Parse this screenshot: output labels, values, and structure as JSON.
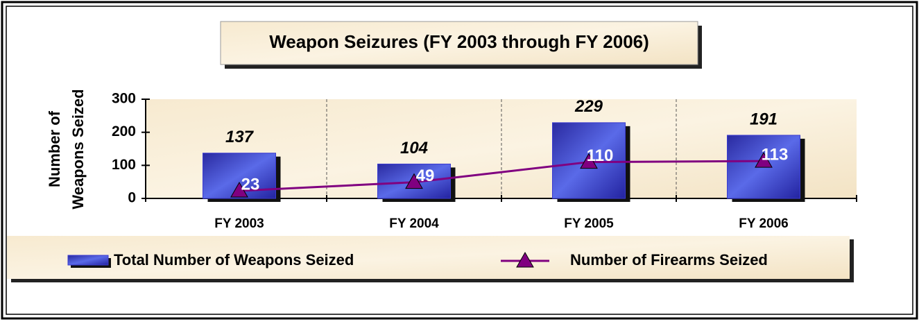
{
  "chart_data": {
    "type": "bar",
    "title": "Weapon Seizures (FY 2003 through FY 2006)",
    "y_label": [
      "Number of",
      "Weapons Seized"
    ],
    "categories": [
      "FY 2003",
      "FY 2004",
      "FY 2005",
      "FY 2006"
    ],
    "series": [
      {
        "name": "Total Number of Weapons Seized",
        "type": "bar",
        "color": "#3a3ad0",
        "values": [
          137,
          104,
          229,
          191
        ]
      },
      {
        "name": "Number of Firearms Seized",
        "type": "line",
        "color": "#800080",
        "values": [
          23,
          49,
          110,
          113
        ]
      }
    ],
    "ylim": [
      0,
      300
    ],
    "yticks": [
      0,
      100,
      200,
      300
    ]
  }
}
